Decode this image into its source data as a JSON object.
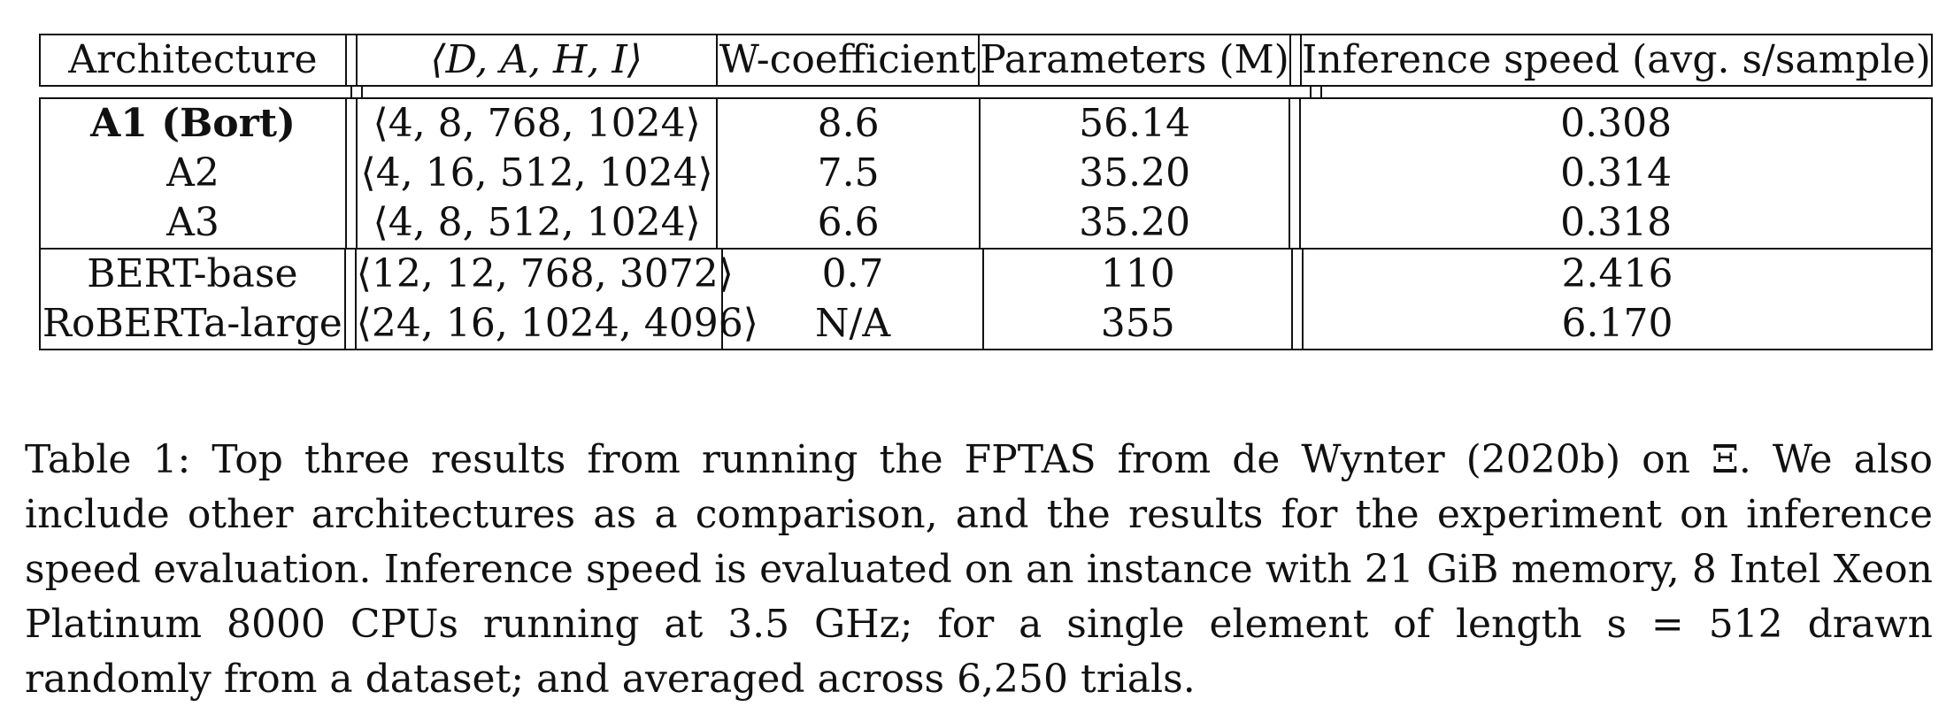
{
  "table": {
    "headers": [
      "Architecture",
      "⟨D, A, H, I⟩",
      "W-coefficient",
      "Parameters (M)",
      "Inference speed (avg. s/sample)"
    ],
    "rows": [
      {
        "architecture": "A1 (Bort)",
        "config": "⟨4, 8, 768, 1024⟩",
        "w_coefficient": "8.6",
        "parameters": "56.14",
        "inference_speed": "0.308"
      },
      {
        "architecture": "A2",
        "config": "⟨4, 16, 512, 1024⟩",
        "w_coefficient": "7.5",
        "parameters": "35.20",
        "inference_speed": "0.314"
      },
      {
        "architecture": "A3",
        "config": "⟨4, 8, 512, 1024⟩",
        "w_coefficient": "6.6",
        "parameters": "35.20",
        "inference_speed": "0.318"
      },
      {
        "architecture": "BERT-base",
        "config": "⟨12, 12, 768, 3072⟩",
        "w_coefficient": "0.7",
        "parameters": "110",
        "inference_speed": "2.416"
      },
      {
        "architecture": "RoBERTa-large",
        "config": "⟨24, 16, 1024, 4096⟩",
        "w_coefficient": "N/A",
        "parameters": "355",
        "inference_speed": "6.170"
      }
    ]
  },
  "caption": "Table 1: Top three results from running the FPTAS from de Wynter (2020b) on Ξ. We also include other architectures as a comparison, and the results for the experiment on inference speed evaluation. Inference speed is evaluated on an instance with 21 GiB memory, 8 Intel Xeon Platinum 8000 CPUs running at 3.5 GHz; for a single element of length s = 512 drawn randomly from a dataset; and averaged across 6,250 trials."
}
